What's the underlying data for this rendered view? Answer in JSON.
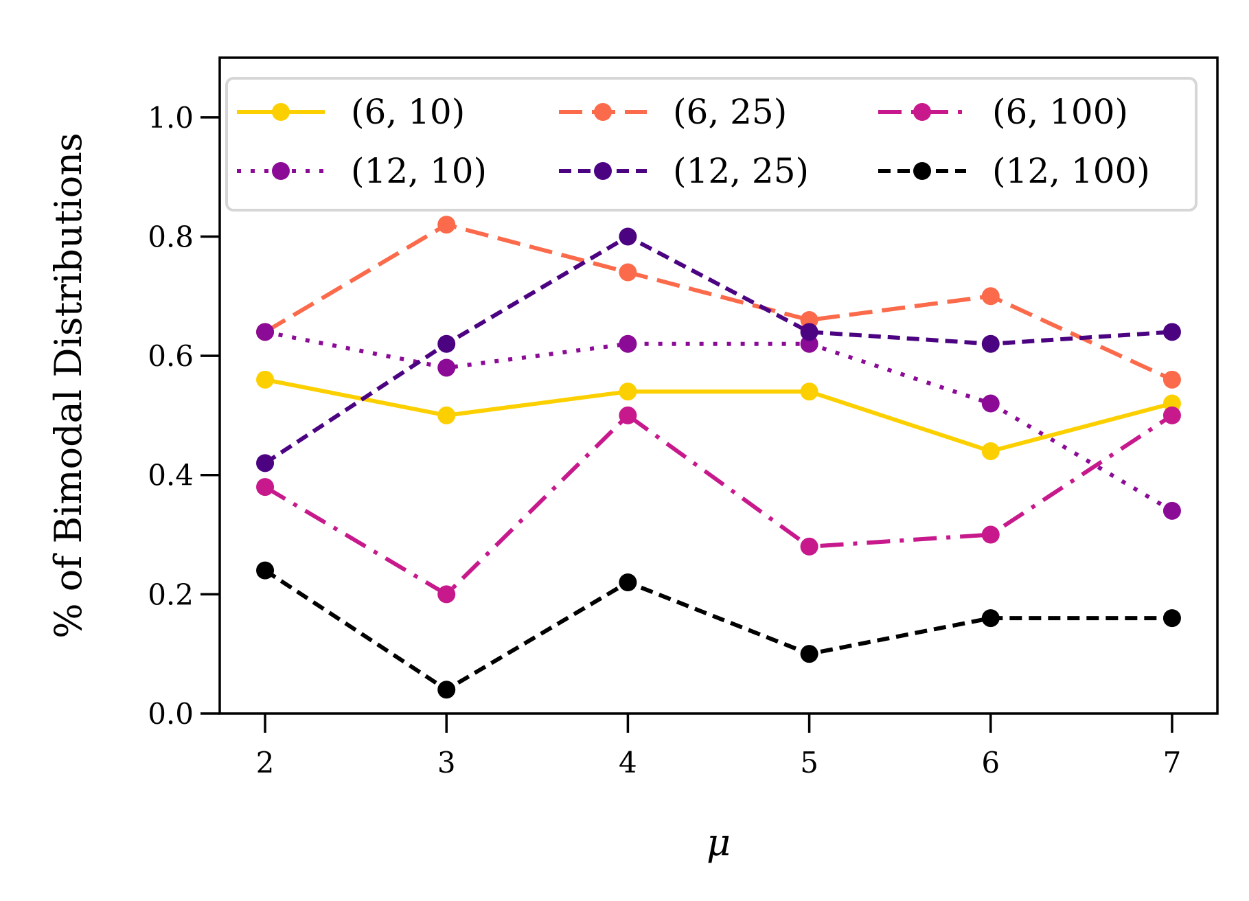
{
  "chart_data": {
    "type": "line",
    "title": "",
    "xlabel": "μ",
    "ylabel": "% of Bimodal Distributions",
    "x": [
      2,
      3,
      4,
      5,
      6,
      7
    ],
    "xlim": [
      1.75,
      7.25
    ],
    "ylim": [
      0.0,
      1.1
    ],
    "yticks": [
      0.0,
      0.2,
      0.4,
      0.6,
      0.8,
      1.0
    ],
    "ytick_labels": [
      "0.0",
      "0.2",
      "0.4",
      "0.6",
      "0.8",
      "1.0"
    ],
    "xtick_labels": [
      "2",
      "3",
      "4",
      "5",
      "6",
      "7"
    ],
    "grid": false,
    "legend_position": "top",
    "legend_columns": 3,
    "series": [
      {
        "name": "(6, 10)",
        "color": "#FCD000",
        "linestyle": "solid",
        "values": [
          0.56,
          0.5,
          0.54,
          0.54,
          0.44,
          0.52
        ]
      },
      {
        "name": "(6, 25)",
        "color": "#FB6A4A",
        "linestyle": "dashed",
        "values": [
          0.64,
          0.82,
          0.74,
          0.66,
          0.7,
          0.56
        ]
      },
      {
        "name": "(6, 100)",
        "color": "#C7188C",
        "linestyle": "dashdot",
        "values": [
          0.38,
          0.2,
          0.5,
          0.28,
          0.3,
          0.5
        ]
      },
      {
        "name": "(12, 10)",
        "color": "#8B0A96",
        "linestyle": "dotted",
        "values": [
          0.64,
          0.58,
          0.62,
          0.62,
          0.52,
          0.34
        ]
      },
      {
        "name": "(12, 25)",
        "color": "#4B0382",
        "linestyle": "densedash",
        "values": [
          0.42,
          0.62,
          0.8,
          0.64,
          0.62,
          0.64
        ]
      },
      {
        "name": "(12, 100)",
        "color": "#000000",
        "linestyle": "densedash",
        "values": [
          0.24,
          0.04,
          0.22,
          0.1,
          0.16,
          0.16
        ]
      }
    ]
  }
}
